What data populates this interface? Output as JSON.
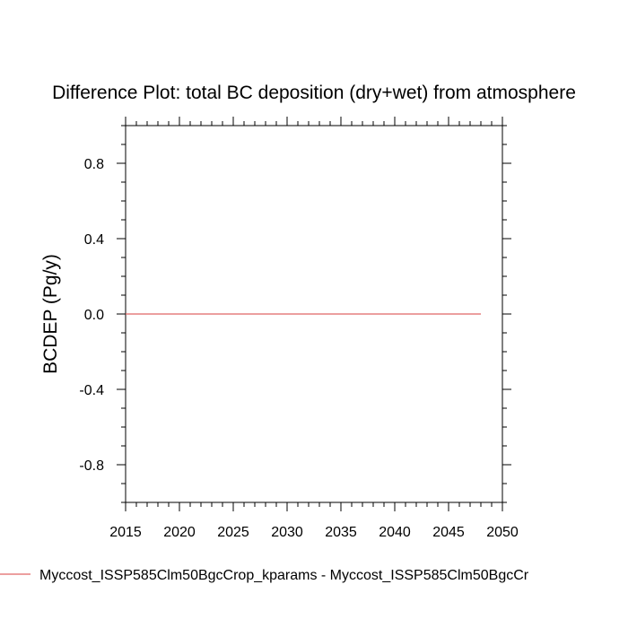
{
  "chart_data": {
    "type": "line",
    "title": "Difference Plot: total BC deposition (dry+wet) from atmosphere",
    "xlabel": "",
    "ylabel": "BCDEP  (Pg/y)",
    "xlim": [
      2015,
      2050
    ],
    "ylim": [
      -1.0,
      1.0
    ],
    "x_ticks": [
      2015,
      2020,
      2025,
      2030,
      2035,
      2040,
      2045,
      2050
    ],
    "y_ticks": [
      -0.8,
      -0.4,
      0.0,
      0.4,
      0.8
    ],
    "x_tick_labels": [
      "2015",
      "2020",
      "2025",
      "2030",
      "2035",
      "2040",
      "2045",
      "2050"
    ],
    "y_tick_labels": [
      "-0.8",
      "-0.4",
      "0.0",
      "0.4",
      "0.8"
    ],
    "grid": false,
    "legend_position": "bottom",
    "series": [
      {
        "name": "Myccost_ISSP585Clm50BgcCrop_kparams - Myccost_ISSP585Clm50BgcCr",
        "color": "#e06666",
        "x": [
          2015,
          2048
        ],
        "values": [
          0.0,
          0.0
        ]
      }
    ]
  }
}
